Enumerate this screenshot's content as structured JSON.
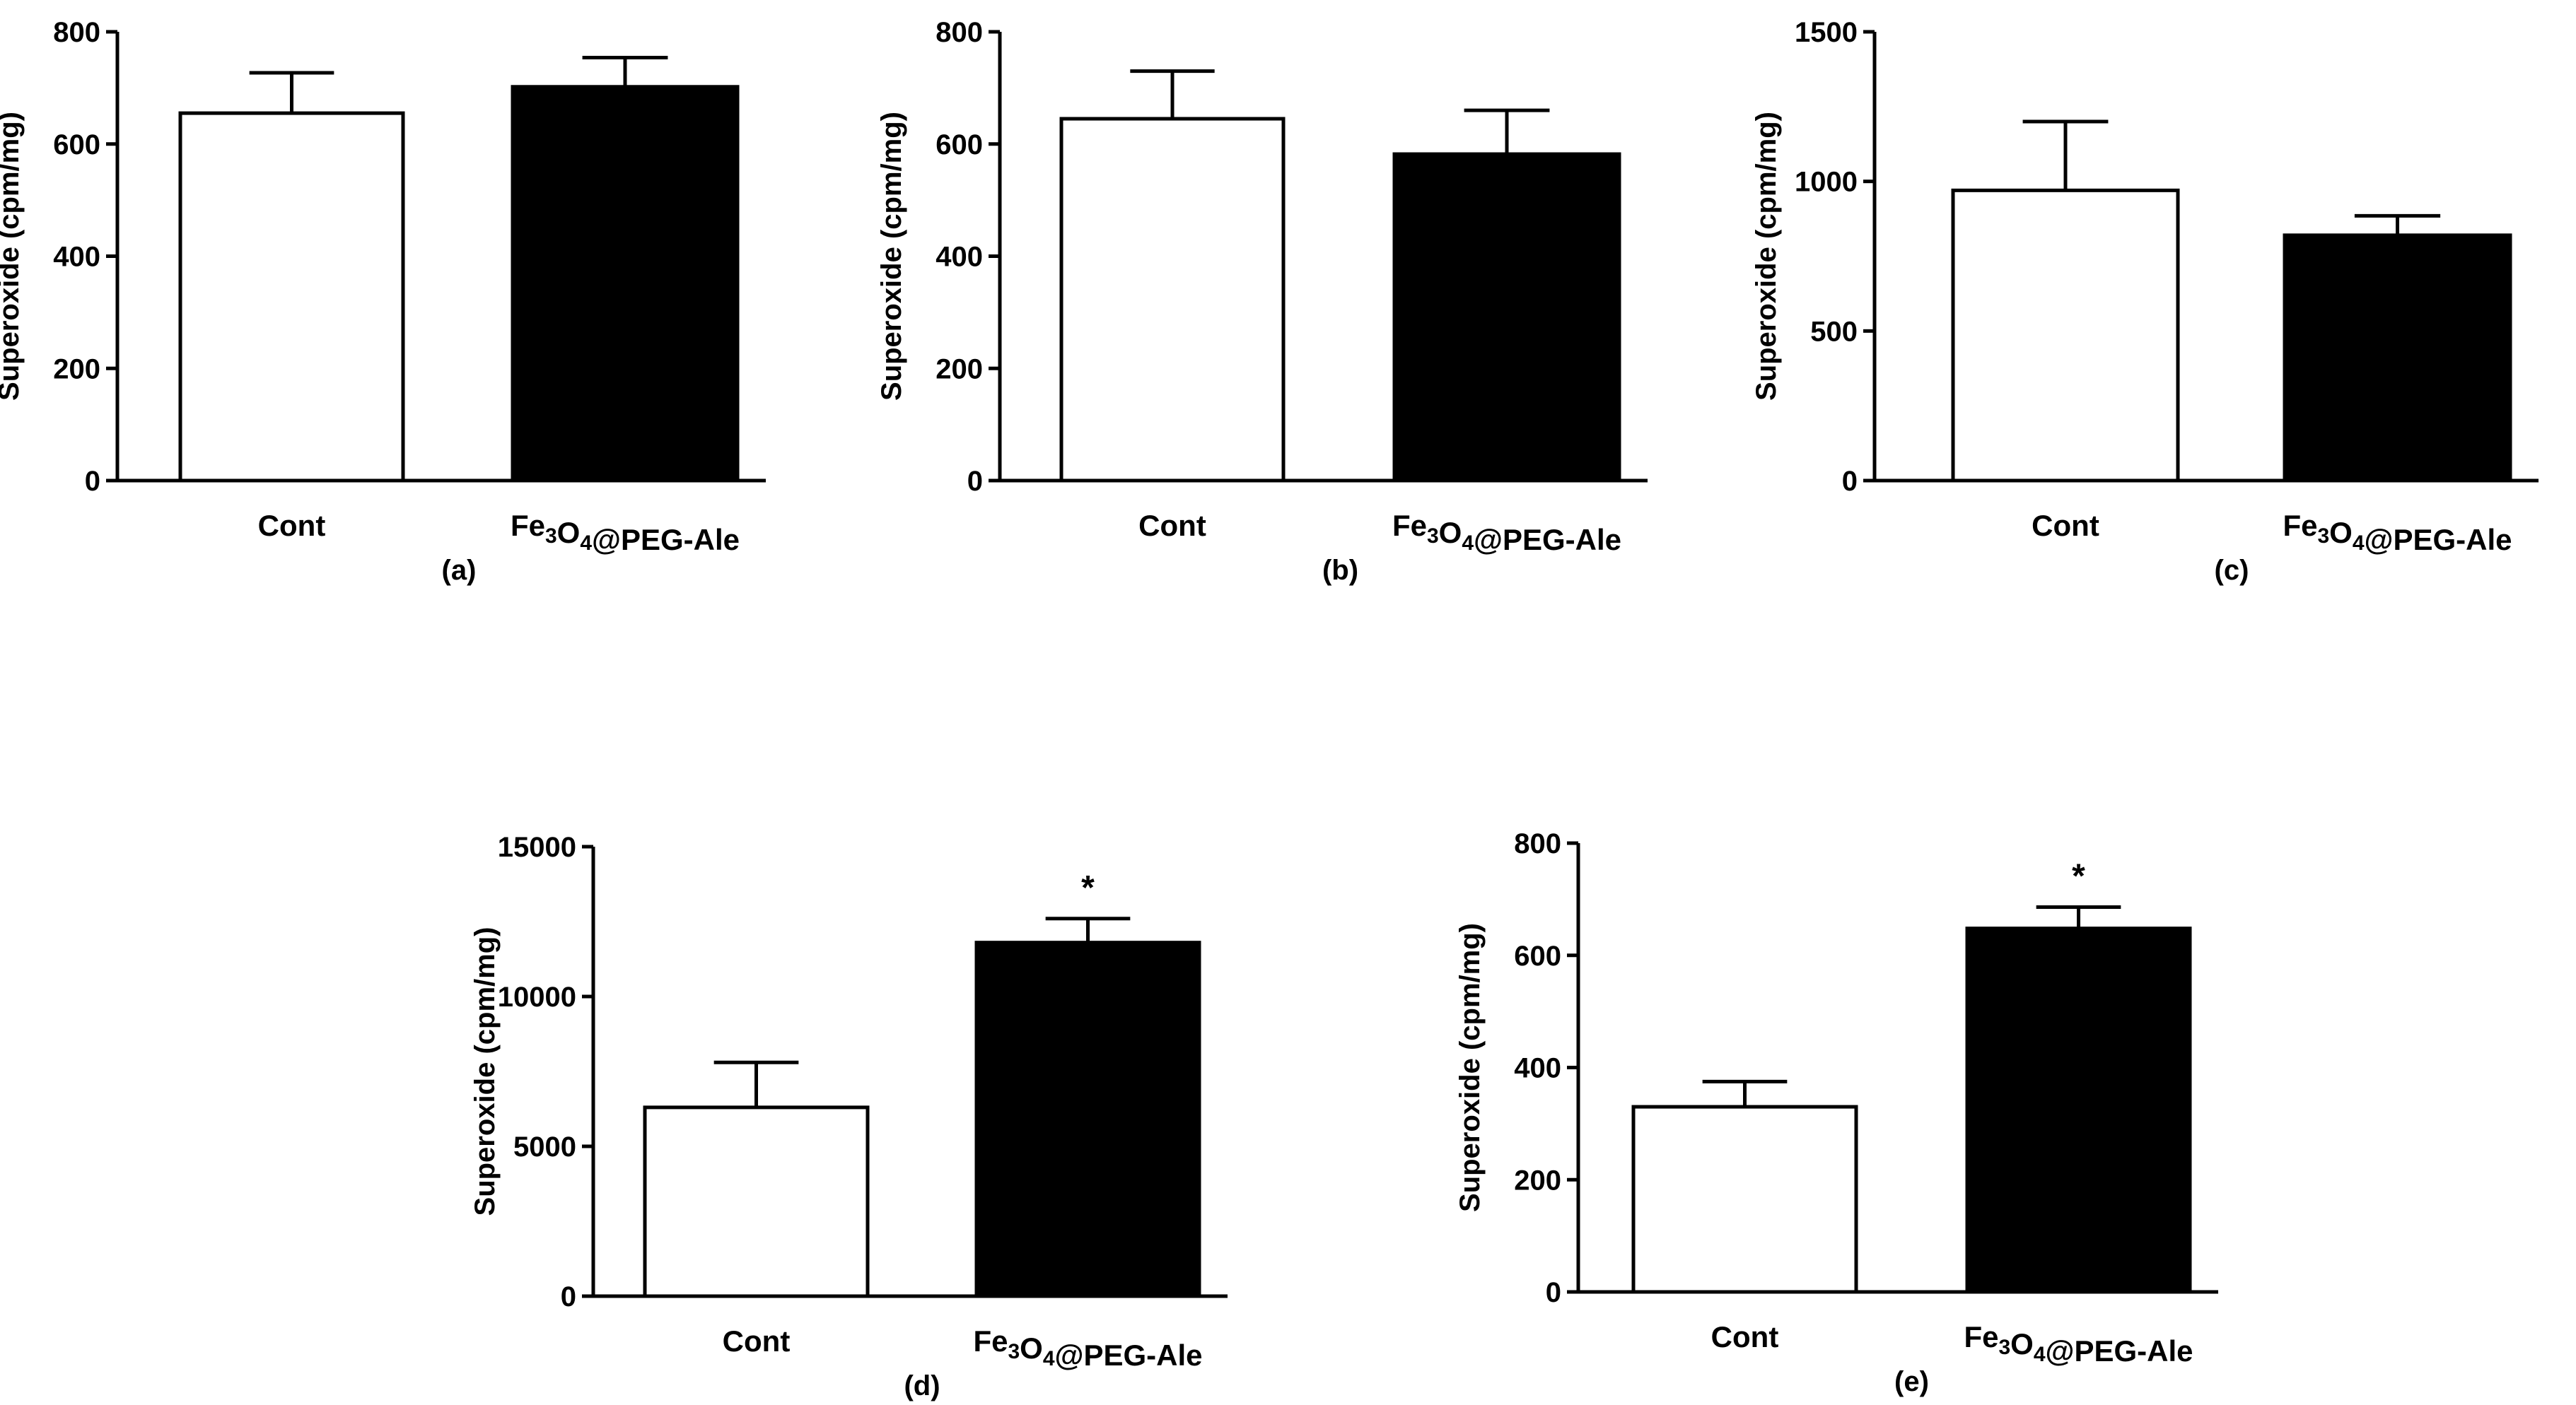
{
  "chart_data": [
    {
      "type": "bar",
      "panel": "(a)",
      "ylabel": "Superoxide (cpm/mg)",
      "xlabel": "",
      "categories": [
        {
          "pre": "Cont",
          "parts": [
            {
              "t": "Cont",
              "sub": false
            }
          ]
        },
        {
          "pre": "Fe3O4@PEG-Ale",
          "parts": [
            {
              "t": "Fe",
              "sub": false
            },
            {
              "t": "3",
              "sub": true
            },
            {
              "t": "O",
              "sub": false
            },
            {
              "t": "4",
              "sub": true
            },
            {
              "t": "@PEG-Ale",
              "sub": false
            }
          ]
        }
      ],
      "values": [
        655,
        702
      ],
      "errors": [
        72,
        52
      ],
      "fills": [
        "#ffffff",
        "#000000"
      ],
      "significance": [
        "",
        ""
      ],
      "ylim": [
        0,
        800
      ],
      "yticks": [
        0,
        200,
        400,
        600,
        800
      ]
    },
    {
      "type": "bar",
      "panel": "(b)",
      "ylabel": "Superoxide (cpm/mg)",
      "xlabel": "",
      "categories": [
        {
          "pre": "Cont",
          "parts": [
            {
              "t": "Cont",
              "sub": false
            }
          ]
        },
        {
          "pre": "Fe3O4@PEG-Ale",
          "parts": [
            {
              "t": "Fe",
              "sub": false
            },
            {
              "t": "3",
              "sub": true
            },
            {
              "t": "O",
              "sub": false
            },
            {
              "t": "4",
              "sub": true
            },
            {
              "t": "@PEG-Ale",
              "sub": false
            }
          ]
        }
      ],
      "values": [
        645,
        582
      ],
      "errors": [
        85,
        78
      ],
      "fills": [
        "#ffffff",
        "#000000"
      ],
      "significance": [
        "",
        ""
      ],
      "ylim": [
        0,
        800
      ],
      "yticks": [
        0,
        200,
        400,
        600,
        800
      ]
    },
    {
      "type": "bar",
      "panel": "(c)",
      "ylabel": "Superoxide (cpm/mg)",
      "xlabel": "",
      "categories": [
        {
          "pre": "Cont",
          "parts": [
            {
              "t": "Cont",
              "sub": false
            }
          ]
        },
        {
          "pre": "Fe3O4@PEG-Ale",
          "parts": [
            {
              "t": "Fe",
              "sub": false
            },
            {
              "t": "3",
              "sub": true
            },
            {
              "t": "O",
              "sub": false
            },
            {
              "t": "4",
              "sub": true
            },
            {
              "t": "@PEG-Ale",
              "sub": false
            }
          ]
        }
      ],
      "values": [
        970,
        820
      ],
      "errors": [
        230,
        65
      ],
      "fills": [
        "#ffffff",
        "#000000"
      ],
      "significance": [
        "",
        ""
      ],
      "ylim": [
        0,
        1500
      ],
      "yticks": [
        0,
        500,
        1000,
        1500
      ]
    },
    {
      "type": "bar",
      "panel": "(d)",
      "ylabel": "Superoxide (cpm/mg)",
      "xlabel": "",
      "categories": [
        {
          "pre": "Cont",
          "parts": [
            {
              "t": "Cont",
              "sub": false
            }
          ]
        },
        {
          "pre": "Fe3O4@PEG-Ale",
          "parts": [
            {
              "t": "Fe",
              "sub": false
            },
            {
              "t": "3",
              "sub": true
            },
            {
              "t": "O",
              "sub": false
            },
            {
              "t": "4",
              "sub": true
            },
            {
              "t": "@PEG-Ale",
              "sub": false
            }
          ]
        }
      ],
      "values": [
        6300,
        11800
      ],
      "errors": [
        1500,
        800
      ],
      "fills": [
        "#ffffff",
        "#000000"
      ],
      "significance": [
        "",
        "*"
      ],
      "ylim": [
        0,
        15000
      ],
      "yticks": [
        0,
        5000,
        10000,
        15000
      ]
    },
    {
      "type": "bar",
      "panel": "(e)",
      "ylabel": "Superoxide (cpm/mg)",
      "xlabel": "",
      "categories": [
        {
          "pre": "Cont",
          "parts": [
            {
              "t": "Cont",
              "sub": false
            }
          ]
        },
        {
          "pre": "Fe3O4@PEG-Ale",
          "parts": [
            {
              "t": "Fe",
              "sub": false
            },
            {
              "t": "3",
              "sub": true
            },
            {
              "t": "O",
              "sub": false
            },
            {
              "t": "4",
              "sub": true
            },
            {
              "t": "@PEG-Ale",
              "sub": false
            }
          ]
        }
      ],
      "values": [
        330,
        648
      ],
      "errors": [
        45,
        38
      ],
      "fills": [
        "#ffffff",
        "#000000"
      ],
      "significance": [
        "",
        "*"
      ],
      "ylim": [
        0,
        800
      ],
      "yticks": [
        0,
        200,
        400,
        600,
        800
      ]
    }
  ]
}
